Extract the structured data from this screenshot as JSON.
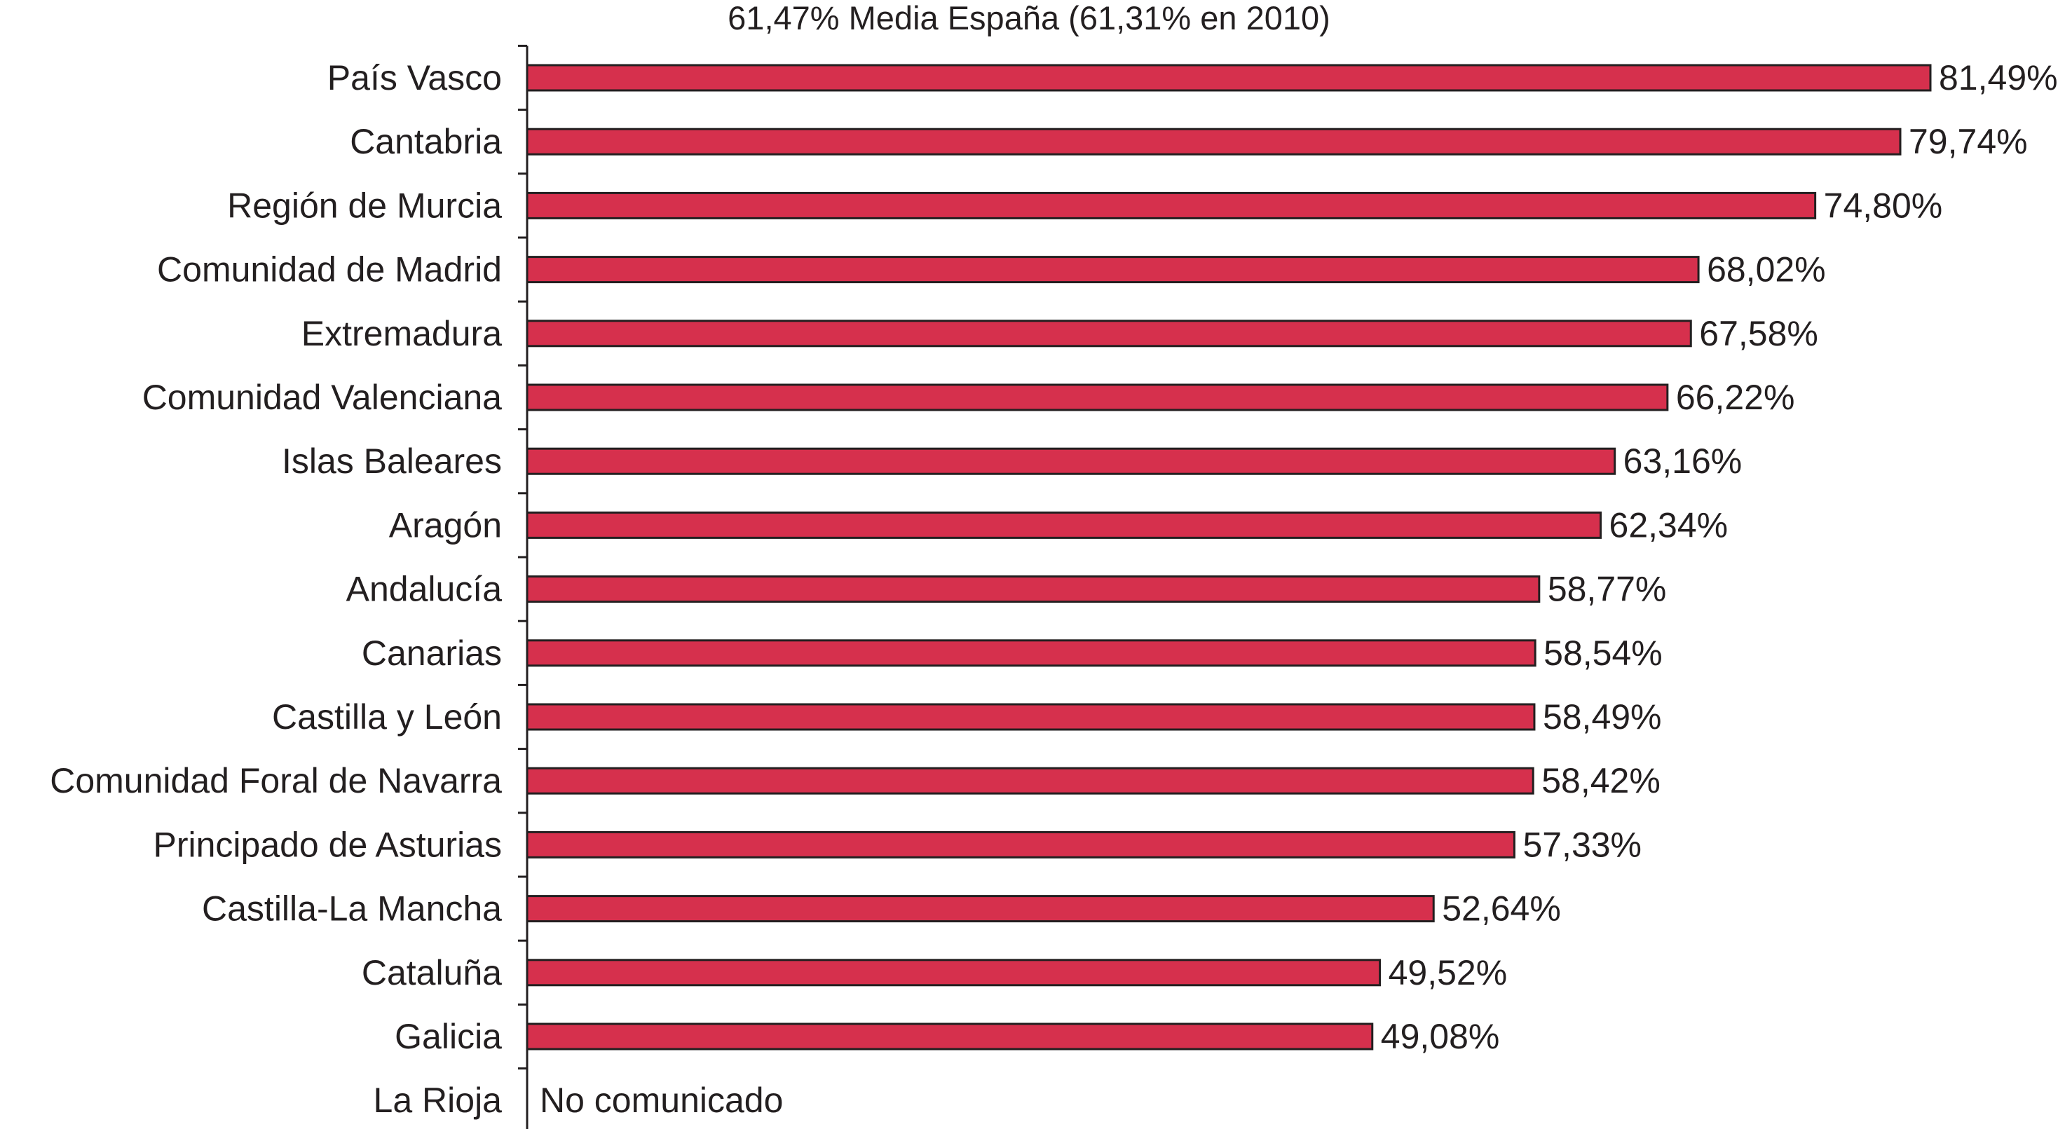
{
  "chart_data": {
    "type": "bar",
    "orientation": "horizontal",
    "title": "61,47% Media España (61,31% en 2010)",
    "xlabel": "",
    "ylabel": "",
    "xlim": [
      0,
      81.49
    ],
    "grid": false,
    "legend": "none",
    "bar_color": "#d6304d",
    "categories": [
      "País Vasco",
      "Cantabria",
      "Región de Murcia",
      "Comunidad de Madrid",
      "Extremadura",
      "Comunidad Valenciana",
      "Islas Baleares",
      "Aragón",
      "Andalucía",
      "Canarias",
      "Castilla y León",
      "Comunidad Foral de Navarra",
      "Principado de Asturias",
      "Castilla-La Mancha",
      "Cataluña",
      "Galicia",
      "La Rioja"
    ],
    "values": [
      81.49,
      79.74,
      74.8,
      68.02,
      67.58,
      66.22,
      63.16,
      62.34,
      58.77,
      58.54,
      58.49,
      58.42,
      57.33,
      52.64,
      49.52,
      49.08,
      null
    ],
    "value_labels": [
      "81,49%",
      "79,74%",
      "74,80%",
      "68,02%",
      "67,58%",
      "66,22%",
      "63,16%",
      "62,34%",
      "58,77%",
      "58,54%",
      "58,49%",
      "58,42%",
      "57,33%",
      "52,64%",
      "49,52%",
      "49,08%",
      "No comunicado"
    ]
  }
}
